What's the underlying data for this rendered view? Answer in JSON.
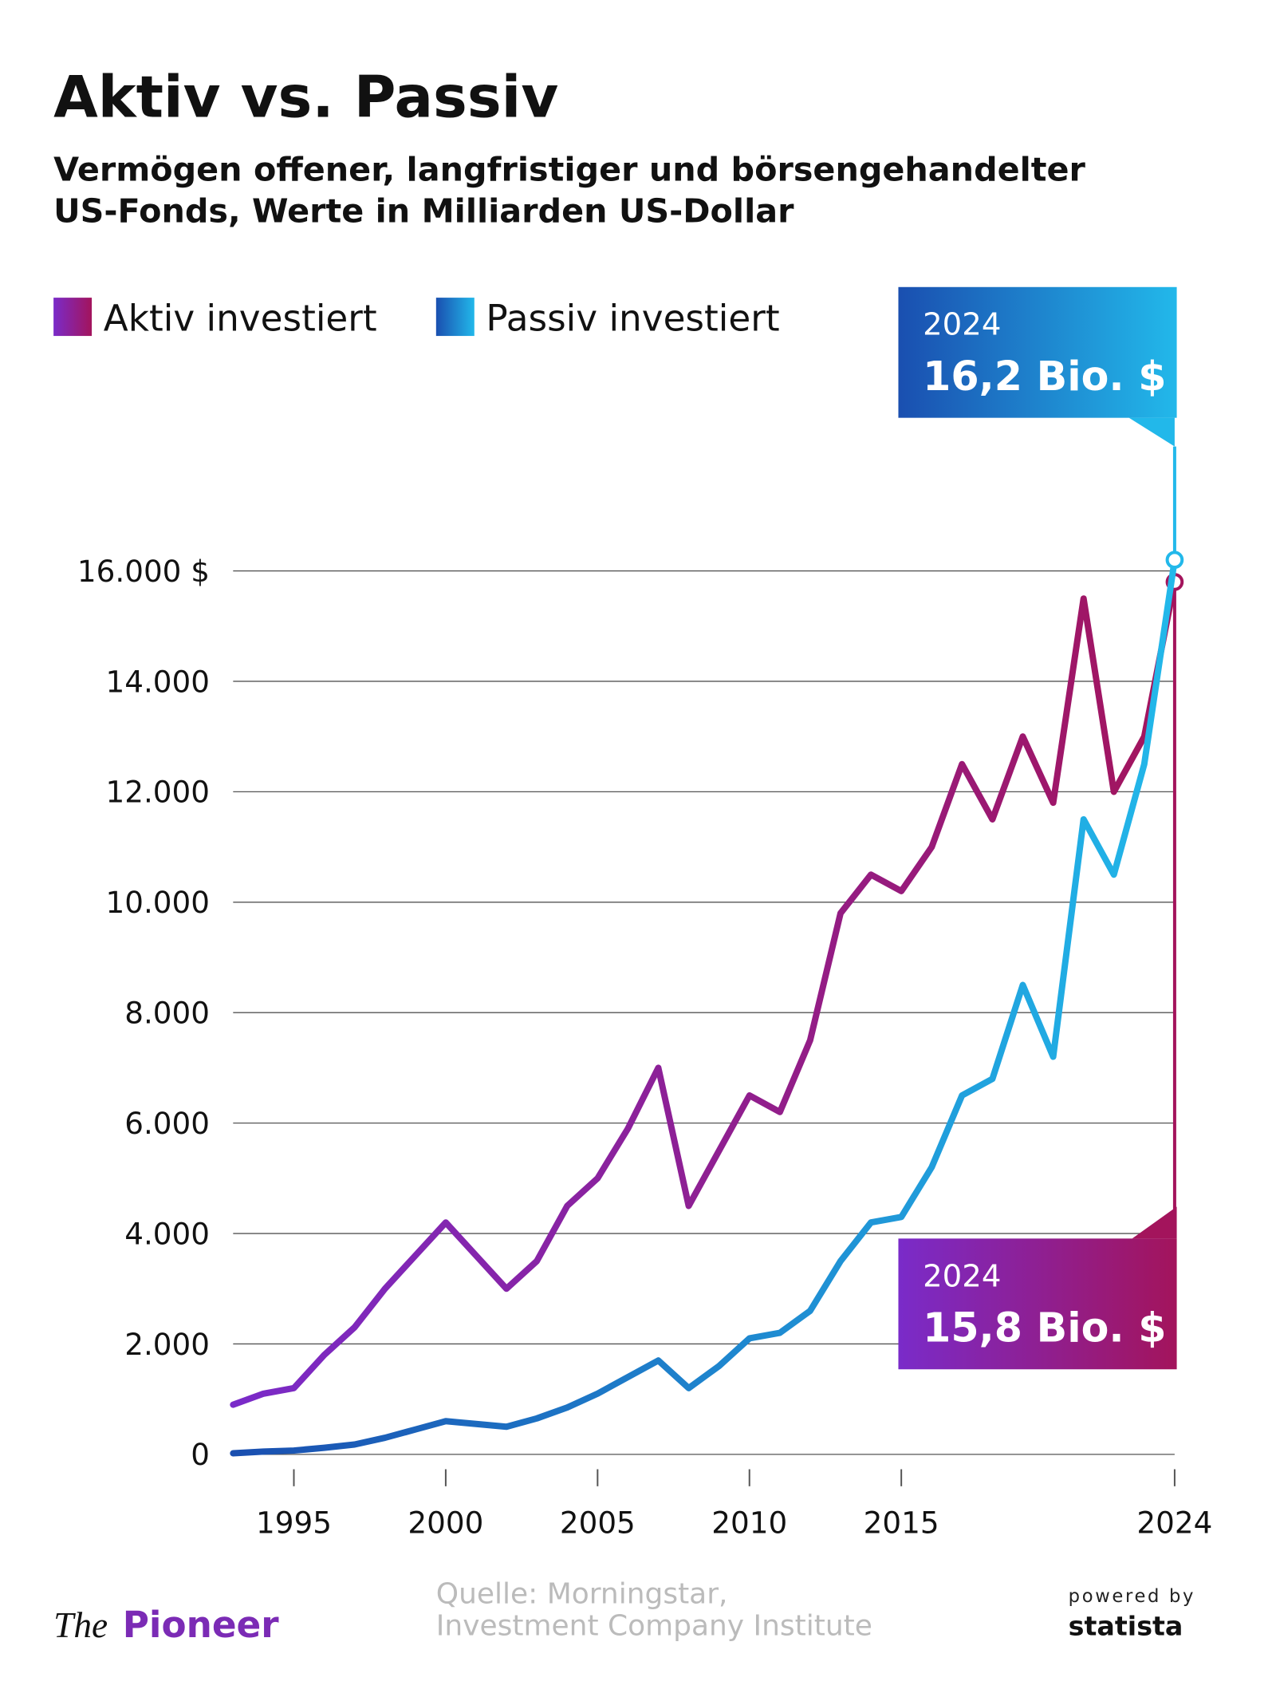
{
  "title": "Aktiv vs. Passiv",
  "subtitle": [
    "Vermögen offener, langfristiger und börsengehandelter",
    "US-Fonds, Werte in Milliarden US-Dollar"
  ],
  "chart_data": {
    "type": "line",
    "x": [
      1993,
      1994,
      1995,
      1996,
      1997,
      1998,
      1999,
      2000,
      2001,
      2002,
      2003,
      2004,
      2005,
      2006,
      2007,
      2008,
      2009,
      2010,
      2011,
      2012,
      2013,
      2014,
      2015,
      2016,
      2017,
      2018,
      2019,
      2020,
      2021,
      2022,
      2023,
      2024
    ],
    "series": [
      {
        "name": "Aktiv investiert",
        "color": "#7a2bc9",
        "color_end": "#a3145c",
        "values": [
          900,
          1100,
          1200,
          1800,
          2300,
          3000,
          3600,
          4200,
          3600,
          3000,
          3500,
          4500,
          5000,
          5900,
          7000,
          4500,
          5500,
          6500,
          6200,
          7500,
          9800,
          10500,
          10200,
          11000,
          12500,
          11500,
          13000,
          11800,
          15500,
          12000,
          13000,
          15800
        ]
      },
      {
        "name": "Passiv investiert",
        "color": "#1a4fb0",
        "color_end": "#22b8ea",
        "values": [
          20,
          50,
          70,
          120,
          180,
          300,
          450,
          600,
          550,
          500,
          650,
          850,
          1100,
          1400,
          1700,
          1200,
          1600,
          2100,
          2200,
          2600,
          3500,
          4200,
          4300,
          5200,
          6500,
          6800,
          8500,
          7200,
          11500,
          10500,
          12500,
          16200
        ]
      }
    ],
    "xlim": [
      1993,
      2024
    ],
    "xticks": [
      1995,
      2000,
      2005,
      2010,
      2015,
      2024
    ],
    "ylim": [
      0,
      16000
    ],
    "yticks": [
      0,
      {
        "value": 2000,
        "label": "2.000"
      },
      {
        "value": 4000,
        "label": "4.000"
      },
      {
        "value": 6000,
        "label": "6.000"
      },
      {
        "value": 8000,
        "label": "8.000"
      },
      {
        "value": 10000,
        "label": "10.000"
      },
      {
        "value": 12000,
        "label": "12.000"
      },
      {
        "value": 14000,
        "label": "14.000"
      },
      {
        "value": 16000,
        "label": "16.000 $"
      }
    ],
    "grid": true,
    "callouts": [
      {
        "label": "2024",
        "text": "15,8 Bio. $"
      },
      {
        "label": "2024",
        "text": "16,2 Bio. $"
      }
    ]
  },
  "source": [
    "Quelle: Morningstar,",
    "Investment Company Institute"
  ],
  "brand": {
    "the": "The",
    "name": "Pioneer",
    "powered": "powered by",
    "statista": "statista"
  }
}
